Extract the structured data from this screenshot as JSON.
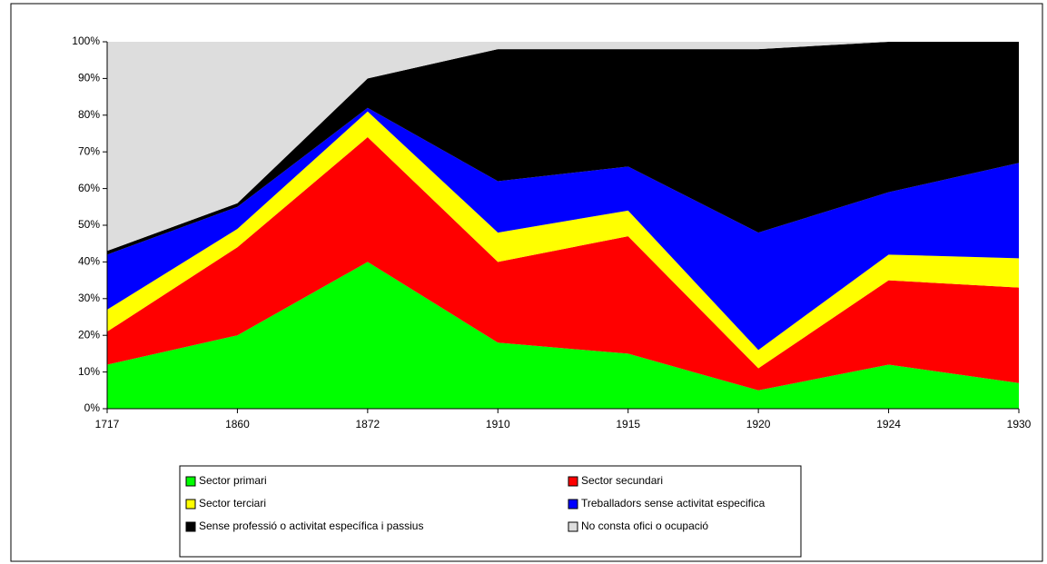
{
  "chart_data": {
    "type": "stacked_area",
    "categories": [
      "1717",
      "1860",
      "1872",
      "1910",
      "1915",
      "1920",
      "1924",
      "1930"
    ],
    "series": [
      {
        "name": "Sector primari",
        "color": "#00ff00",
        "values": [
          12,
          20,
          40,
          18,
          15,
          5,
          12,
          7
        ]
      },
      {
        "name": "Sector secundari",
        "color": "#ff0000",
        "values": [
          9,
          24,
          34,
          22,
          32,
          6,
          23,
          26
        ]
      },
      {
        "name": "Sector terciari",
        "color": "#ffff00",
        "values": [
          6,
          5,
          7,
          8,
          7,
          5,
          7,
          8
        ]
      },
      {
        "name": "Treballadors sense activitat especifica",
        "color": "#0000ff",
        "values": [
          15,
          6,
          1,
          14,
          12,
          32,
          17,
          26
        ]
      },
      {
        "name": "Sense professió o activitat específica i passius",
        "color": "#000000",
        "values": [
          1,
          1,
          8,
          36,
          32,
          50,
          41,
          33
        ]
      },
      {
        "name": "No consta ofici o ocupació",
        "color": "#dddddd",
        "values": [
          57,
          44,
          10,
          2,
          2,
          2,
          0,
          0
        ]
      }
    ],
    "ylim": [
      0,
      100
    ],
    "yticks": [
      {
        "value": 0,
        "label": "0%"
      },
      {
        "value": 10,
        "label": "10%"
      },
      {
        "value": 20,
        "label": "20%"
      },
      {
        "value": 30,
        "label": "30%"
      },
      {
        "value": 40,
        "label": "40%"
      },
      {
        "value": 50,
        "label": "50%"
      },
      {
        "value": 60,
        "label": "60%"
      },
      {
        "value": 70,
        "label": "70%"
      },
      {
        "value": 80,
        "label": "80%"
      },
      {
        "value": 90,
        "label": "90%"
      },
      {
        "value": 100,
        "label": "100%"
      }
    ]
  }
}
